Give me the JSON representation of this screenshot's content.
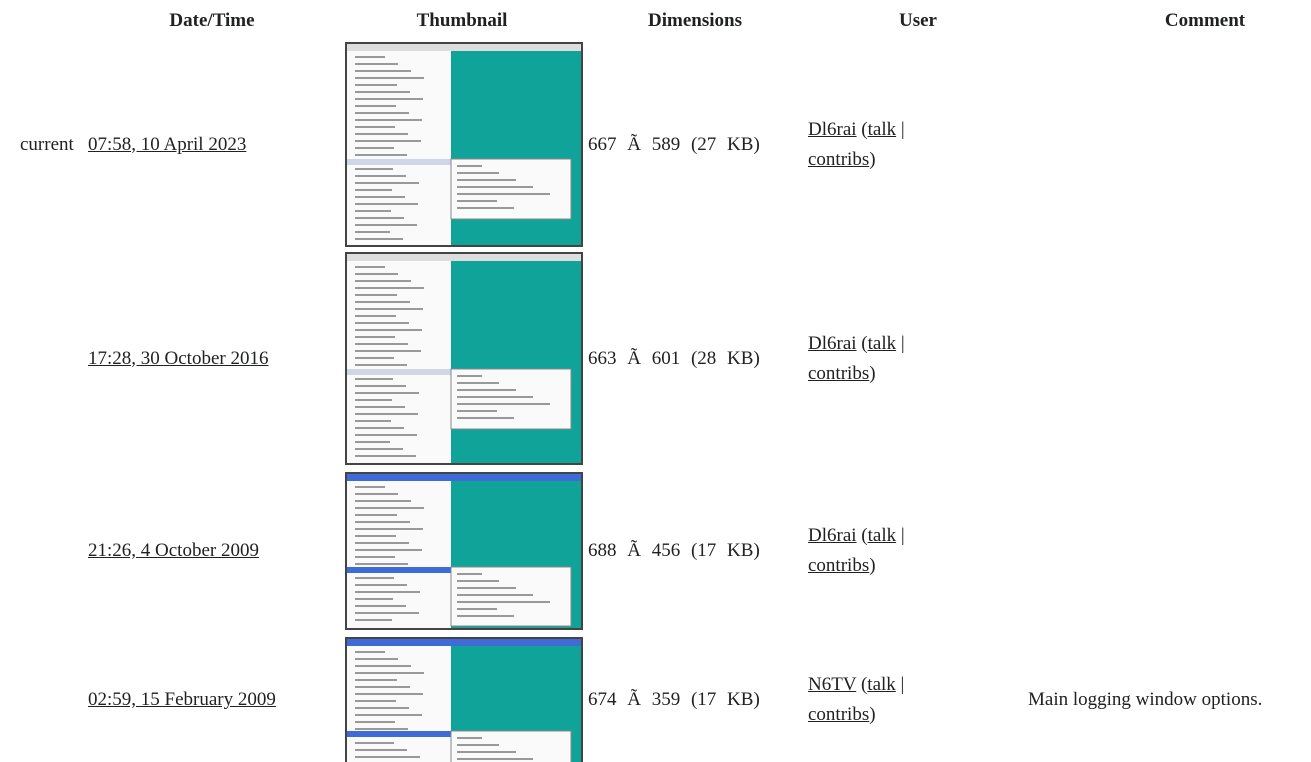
{
  "table": {
    "headers": [
      "Date/Time",
      "Thumbnail",
      "Dimensions",
      "User",
      "Comment"
    ],
    "rows": [
      {
        "status": "current",
        "datetime": "07:58, 10 April 2023",
        "dimensions": "667 Ã 589 (27 KB)",
        "user": [
          "Dl6rai",
          "(",
          "talk",
          "|",
          "contribs",
          ")"
        ]
      },
      {
        "datetime": "17:28, 30 October 2016",
        "dimensions": "663 Ã 601 (28 KB)",
        "user": [
          "Dl6rai",
          "(",
          "talk",
          "|",
          "contribs",
          ")"
        ]
      },
      {
        "datetime": "21:26, 4 October 2009",
        "dimensions": "688 Ã 456 (17 KB)",
        "user": [
          "Dl6rai",
          "(",
          "talk",
          "|",
          "contribs",
          ")"
        ]
      },
      {
        "datetime": "02:59, 15 February 2009",
        "dimensions": "674 Ã 359 (17 KB)",
        "user": [
          "N6TV",
          "(",
          "talk",
          "|",
          "contribs",
          ")"
        ],
        "comment": "Main logging window options."
      }
    ]
  }
}
